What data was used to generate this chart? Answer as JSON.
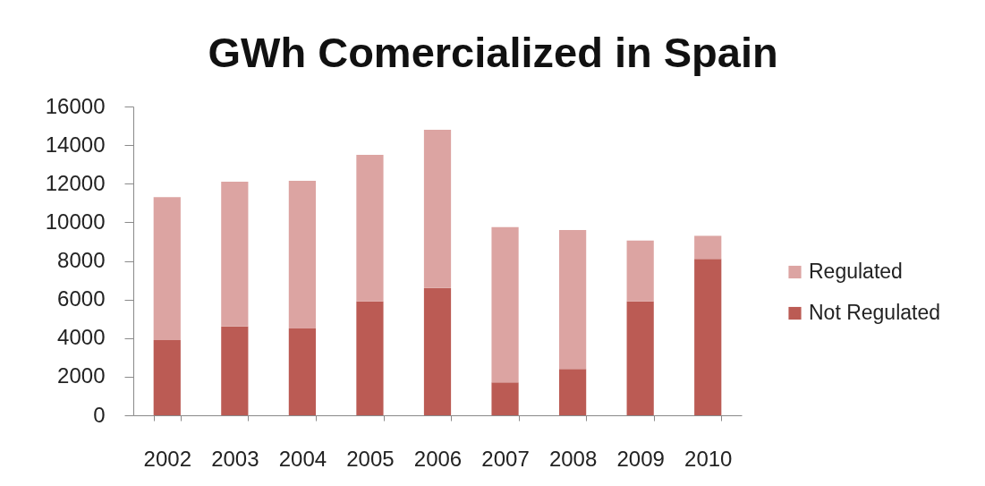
{
  "chart_data": {
    "type": "bar",
    "title": "GWh Comercialized in Spain",
    "stacked": true,
    "categories": [
      "2002",
      "2003",
      "2004",
      "2005",
      "2006",
      "2007",
      "2008",
      "2009",
      "2010"
    ],
    "series": [
      {
        "name": "Not Regulated",
        "color": "#bb5b54",
        "values": [
          3900,
          4600,
          4500,
          5900,
          6600,
          1700,
          2400,
          5900,
          8100
        ]
      },
      {
        "name": "Regulated",
        "color": "#dca4a2",
        "values": [
          7400,
          7500,
          7650,
          7600,
          8200,
          8050,
          7200,
          3150,
          1200
        ]
      }
    ],
    "ylim": [
      0,
      16000
    ],
    "yticks": [
      0,
      2000,
      4000,
      6000,
      8000,
      10000,
      12000,
      14000,
      16000
    ],
    "grid": false,
    "legend": "right"
  }
}
